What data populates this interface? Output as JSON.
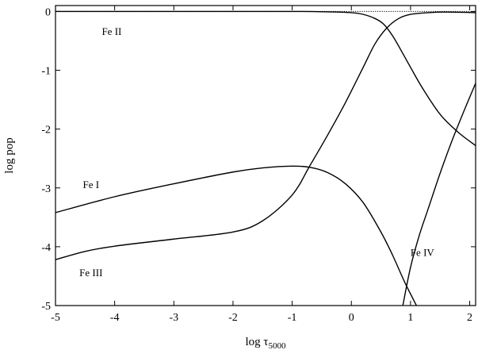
{
  "chart_data": {
    "type": "line",
    "title": "",
    "xlabel_main": "log τ",
    "xlabel_sub": "5000",
    "ylabel": "log pop",
    "xlim": [
      -5,
      2.1
    ],
    "ylim": [
      -5,
      0.1
    ],
    "xticks": [
      -5,
      -4,
      -3,
      -2,
      -1,
      0,
      1,
      2
    ],
    "xtick_labels": [
      "-5",
      "-4",
      "-3",
      "-2",
      "-1",
      "0",
      "1",
      "2"
    ],
    "yticks": [
      0,
      -1,
      -2,
      -3,
      -4,
      -5
    ],
    "ytick_labels": [
      "0",
      "-1",
      "-2",
      "-3",
      "-4",
      "-5"
    ],
    "grid": false,
    "series": [
      {
        "name": "Fe II",
        "x": [
          -5,
          -4,
          -3,
          -2,
          -1,
          -0.5,
          0,
          0.2,
          0.4,
          0.55,
          0.7,
          0.85,
          1.0,
          1.2,
          1.5,
          1.8,
          2.1
        ],
        "y": [
          0,
          0,
          0,
          0,
          0,
          -0.005,
          -0.02,
          -0.05,
          -0.12,
          -0.22,
          -0.42,
          -0.68,
          -0.95,
          -1.3,
          -1.75,
          -2.05,
          -2.28
        ]
      },
      {
        "name": "Fe I",
        "x": [
          -5,
          -4,
          -3,
          -2,
          -1.5,
          -1.0,
          -0.7,
          -0.4,
          -0.1,
          0.2,
          0.5,
          0.7,
          0.9,
          1.1
        ],
        "y": [
          -3.42,
          -3.15,
          -2.93,
          -2.73,
          -2.66,
          -2.63,
          -2.65,
          -2.74,
          -2.93,
          -3.25,
          -3.75,
          -4.15,
          -4.6,
          -5.0
        ]
      },
      {
        "name": "Fe III",
        "x": [
          -5,
          -4.5,
          -4,
          -3,
          -2,
          -1.5,
          -1.0,
          -0.7,
          -0.4,
          -0.1,
          0.2,
          0.4,
          0.6,
          0.8,
          1.0,
          1.3,
          1.6,
          2.1
        ],
        "y": [
          -4.22,
          -4.08,
          -3.99,
          -3.87,
          -3.75,
          -3.56,
          -3.12,
          -2.62,
          -2.1,
          -1.55,
          -0.95,
          -0.55,
          -0.28,
          -0.12,
          -0.05,
          -0.02,
          -0.01,
          -0.02
        ]
      },
      {
        "name": "Fe IV",
        "x": [
          0.87,
          1.0,
          1.15,
          1.3,
          1.5,
          1.7,
          1.9,
          2.1
        ],
        "y": [
          -5.0,
          -4.35,
          -3.8,
          -3.35,
          -2.75,
          -2.2,
          -1.7,
          -1.22
        ]
      }
    ],
    "reference_line": {
      "style": "dotted",
      "y": 0
    },
    "annotations": [
      {
        "text": "Fe II",
        "x": -4.05,
        "y": -0.4
      },
      {
        "text": "Fe I",
        "x": -4.4,
        "y": -3.0
      },
      {
        "text": "Fe III",
        "x": -4.4,
        "y": -4.5
      },
      {
        "text": "Fe IV",
        "x": 1.2,
        "y": -4.16
      }
    ]
  }
}
